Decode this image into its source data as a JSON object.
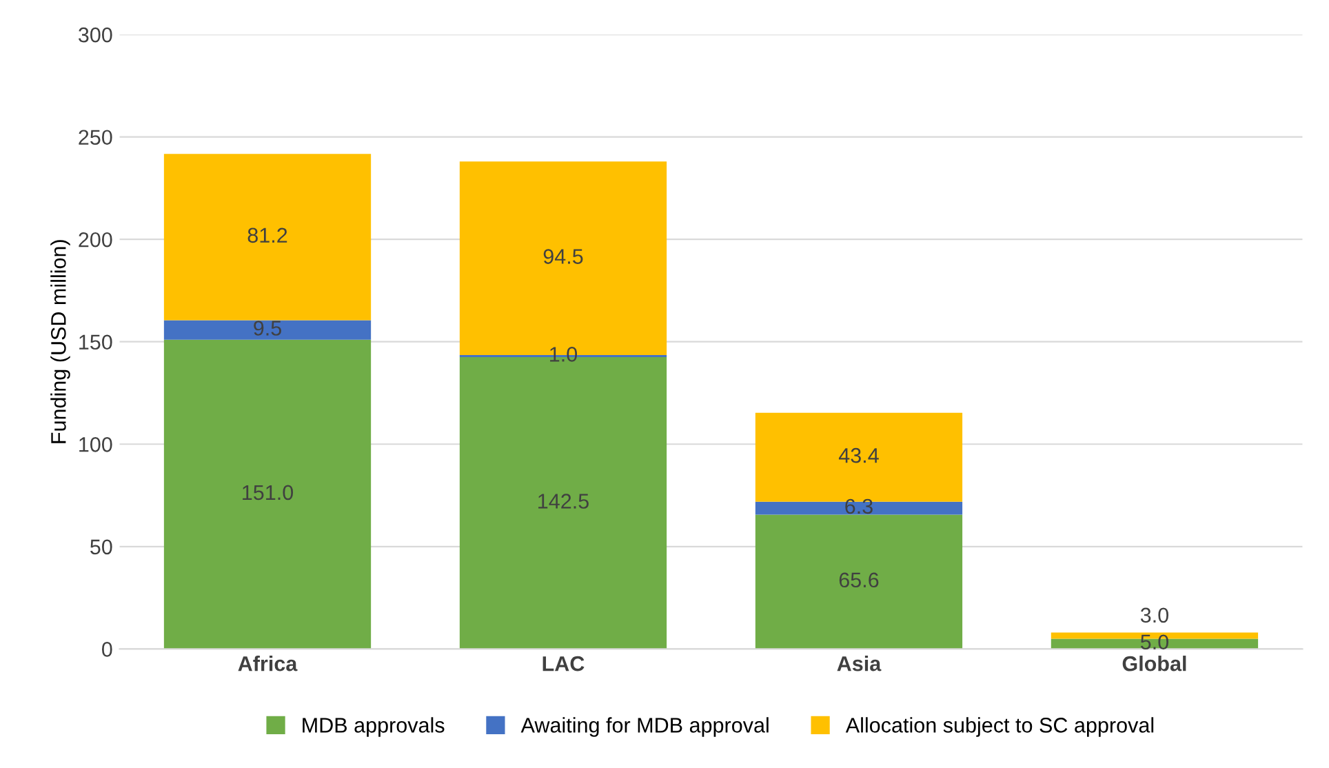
{
  "chart_data": {
    "type": "bar",
    "stacked": true,
    "ylabel": "Funding (USD million)",
    "categories": [
      "Africa",
      "LAC",
      "Asia",
      "Global"
    ],
    "series": [
      {
        "name": "MDB approvals",
        "color": "#70ad47",
        "values": [
          151.0,
          142.5,
          65.6,
          5.0
        ],
        "value_labels": [
          "151.0",
          "142.5",
          "65.6",
          "5.0"
        ]
      },
      {
        "name": "Awaiting for MDB approval",
        "color": "#4472c4",
        "values": [
          9.5,
          1.0,
          6.3,
          null
        ],
        "value_labels": [
          "9.5",
          "1.0",
          "6.3",
          null
        ]
      },
      {
        "name": "Allocation subject to SC approval",
        "color": "#ffc000",
        "values": [
          81.2,
          94.5,
          43.4,
          3.0
        ],
        "value_labels": [
          "81.2",
          "94.5",
          "43.4",
          "3.0"
        ]
      }
    ],
    "ylim": [
      0,
      300
    ],
    "yticks": [
      0,
      50,
      100,
      150,
      200,
      250,
      300
    ],
    "grid": "y",
    "legend": "bottom"
  }
}
